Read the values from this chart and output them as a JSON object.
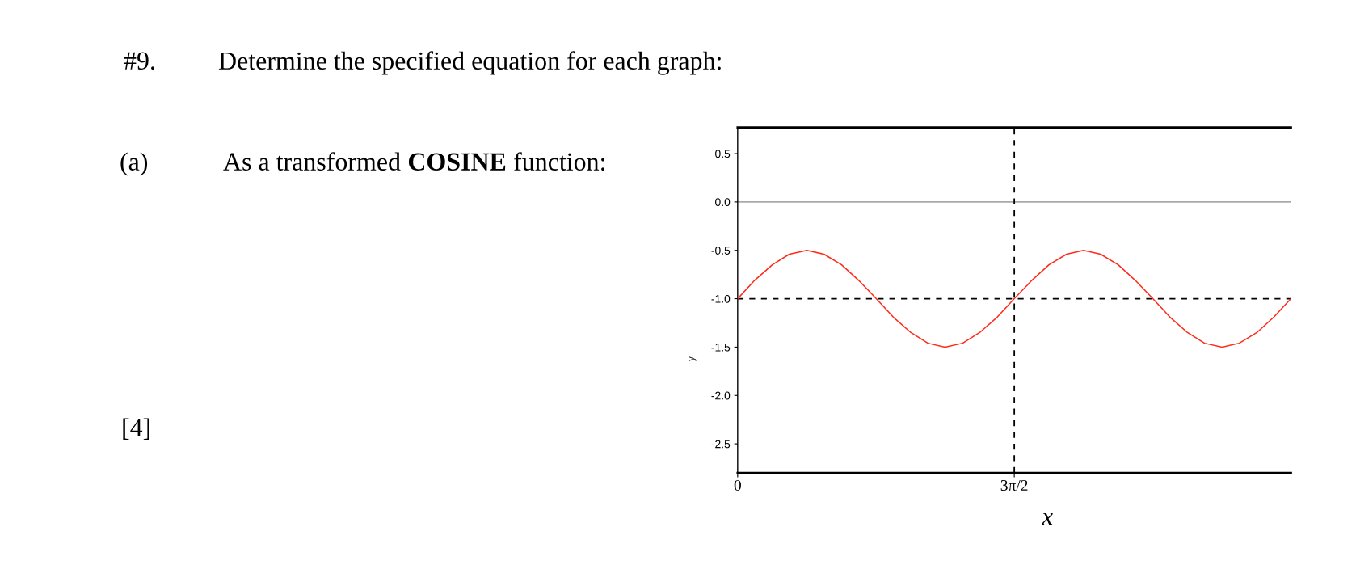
{
  "chart_data": {
    "type": "line",
    "xlabel": "x",
    "ylabel": "y",
    "annotations": [
      "#9.",
      "Determine the specified equation for each graph:",
      "(a)",
      "As a transformed",
      "COSINE",
      "function:",
      "[4]"
    ],
    "series": [
      {
        "color": "#ff2a1a",
        "x": [
          0,
          0.29,
          0.59,
          0.88,
          1.18,
          1.47,
          1.77,
          2.06,
          2.36,
          2.65,
          2.95,
          3.24,
          3.53,
          3.83,
          4.12,
          4.42,
          4.71,
          5.01,
          5.3,
          5.6,
          5.89,
          6.18,
          6.48,
          6.77,
          7.07,
          7.36,
          7.66,
          7.95,
          8.25,
          8.54,
          8.84,
          9.13,
          9.42
        ],
        "values": [
          -1,
          -0.81,
          -0.65,
          -0.54,
          -0.5,
          -0.54,
          -0.65,
          -0.81,
          -1,
          -1.19,
          -1.35,
          -1.46,
          -1.5,
          -1.46,
          -1.35,
          -1.19,
          -1,
          -0.81,
          -0.65,
          -0.54,
          -0.5,
          -0.54,
          -0.65,
          -0.81,
          -1,
          -1.19,
          -1.35,
          -1.46,
          -1.5,
          -1.46,
          -1.35,
          -1.19,
          -1
        ]
      }
    ],
    "xlim": [
      0,
      9.42
    ],
    "xticks": [
      {
        "value": 0,
        "label": "0"
      },
      {
        "value": 4.71,
        "label": "3π/2"
      }
    ],
    "ylim": [
      -2.8,
      0.77
    ],
    "yticks": [
      {
        "value": 0.5,
        "label": "0.5"
      },
      {
        "value": 0,
        "label": "0.0"
      },
      {
        "value": -0.5,
        "label": "-0.5"
      },
      {
        "value": -1,
        "label": "-1.0"
      },
      {
        "value": -1.5,
        "label": "-1.5"
      },
      {
        "value": -2,
        "label": "-2.0"
      },
      {
        "value": -2.5,
        "label": "-2.5"
      }
    ],
    "ref_lines": [
      {
        "axis": "y",
        "value": 0,
        "color": "#aaaaaa",
        "line_style": "solid"
      },
      {
        "axis": "y",
        "value": -1,
        "color": "#000000",
        "line_style": "dashed"
      },
      {
        "axis": "x",
        "value": 4.71,
        "color": "#000000",
        "line_style": "dashed"
      }
    ],
    "grid": false,
    "legend": false
  }
}
